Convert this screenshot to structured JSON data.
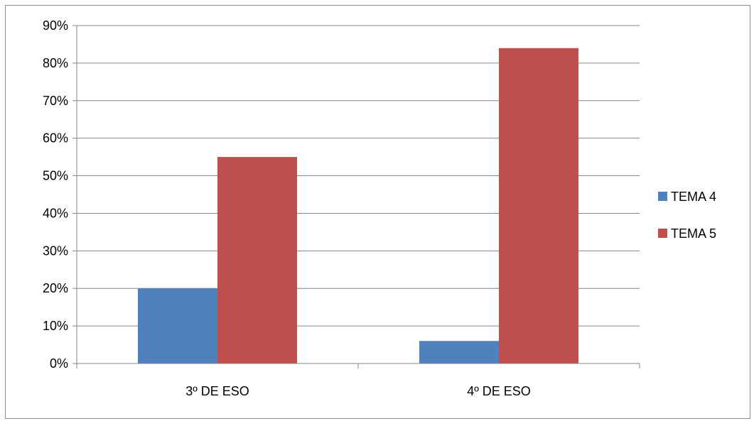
{
  "chart_data": {
    "type": "bar",
    "title": "",
    "xlabel": "",
    "ylabel": "",
    "categories": [
      "3º DE ESO",
      "4º DE ESO"
    ],
    "series": [
      {
        "name": "TEMA 4",
        "values": [
          20,
          6
        ],
        "color": "#4f81bd"
      },
      {
        "name": "TEMA 5",
        "values": [
          55,
          84
        ],
        "color": "#c0504d"
      }
    ],
    "ylim": [
      0,
      90
    ],
    "y_ticks": [
      0,
      10,
      20,
      30,
      40,
      50,
      60,
      70,
      80,
      90
    ],
    "y_tick_format": "percent",
    "grid": true,
    "legend_position": "right"
  }
}
